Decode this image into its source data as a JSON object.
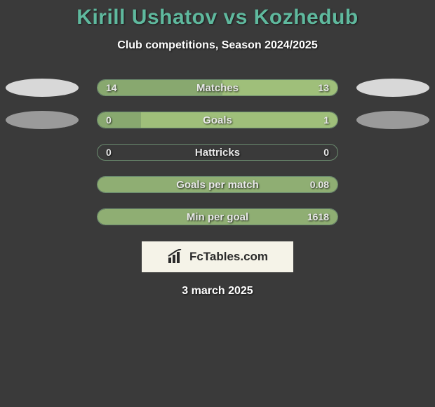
{
  "title": "Kirill Ushatov vs Kozhedub",
  "subtitle": "Club competitions, Season 2024/2025",
  "date": "3 march 2025",
  "brand": "FcTables.com",
  "colors": {
    "background": "#3a3a3a",
    "title": "#5fb99e",
    "text": "#ffffff",
    "bar_border": "#6b8b6f",
    "left_fill": "#88a86f",
    "right_fill": "#9fbf7a",
    "full_fill": "#8fae73",
    "ellipse_light": "#d8d8d8",
    "ellipse_grey": "#9a9a9a",
    "brand_bg": "#f5f3e8",
    "brand_text": "#2a2a2a"
  },
  "rows": [
    {
      "label": "Matches",
      "left_value": "14",
      "right_value": "13",
      "left_pct": 52,
      "right_pct": 48,
      "ellipse_left_color": "#d8d8d8",
      "ellipse_right_color": "#d8d8d8",
      "show_ellipses": true
    },
    {
      "label": "Goals",
      "left_value": "0",
      "right_value": "1",
      "left_pct": 18,
      "right_pct": 82,
      "ellipse_left_color": "#9a9a9a",
      "ellipse_right_color": "#9a9a9a",
      "show_ellipses": true
    },
    {
      "label": "Hattricks",
      "left_value": "0",
      "right_value": "0",
      "left_pct": 0,
      "right_pct": 0,
      "show_ellipses": false
    },
    {
      "label": "Goals per match",
      "left_value": "",
      "right_value": "0.08",
      "left_pct": 0,
      "right_pct": 100,
      "show_ellipses": false
    },
    {
      "label": "Min per goal",
      "left_value": "",
      "right_value": "1618",
      "left_pct": 0,
      "right_pct": 100,
      "show_ellipses": false
    }
  ]
}
